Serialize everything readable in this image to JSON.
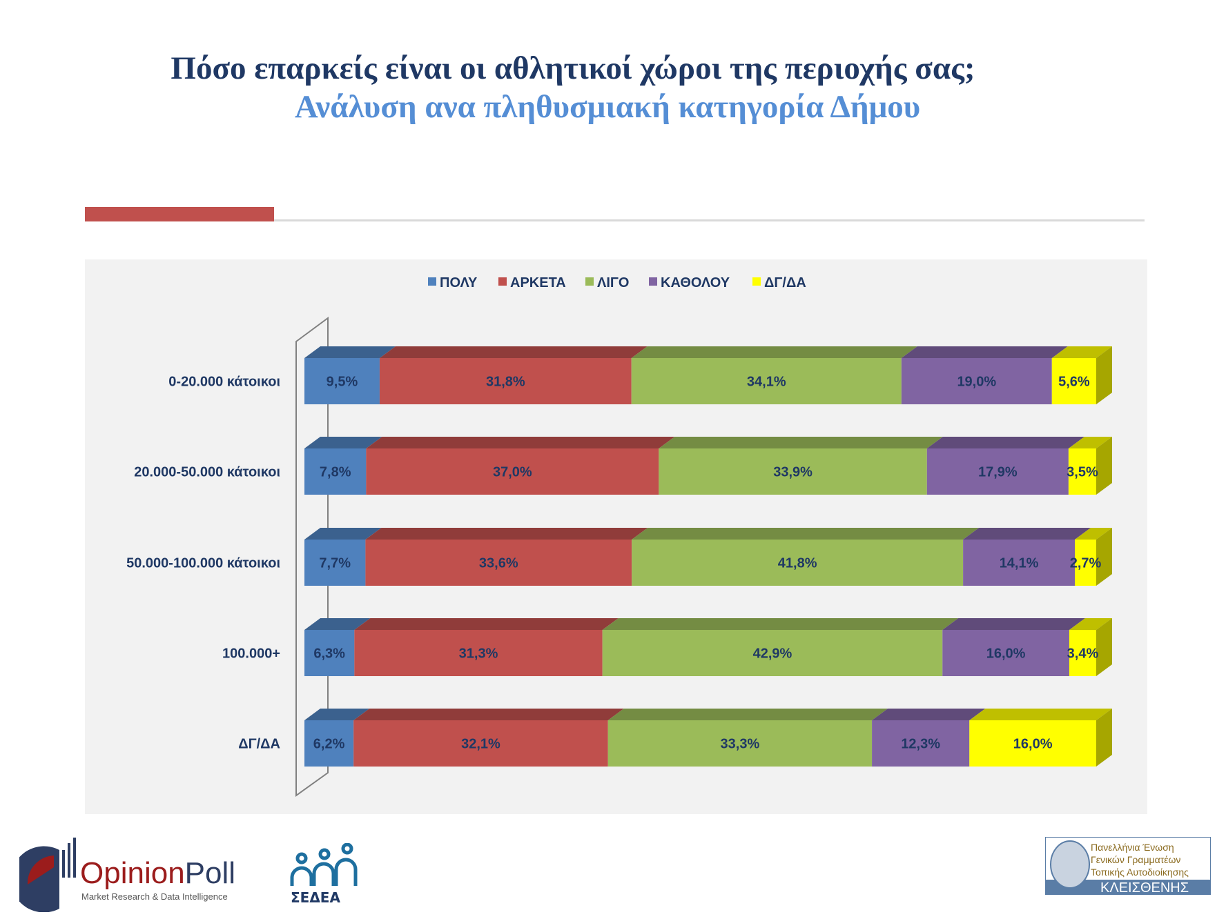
{
  "header": {
    "title": "Πόσο επαρκείς είναι οι αθλητικοί χώροι της περιοχής σας;",
    "subtitle": "Ανάλυση ανα πληθυσμιακή κατηγορία Δήμου"
  },
  "chart_data": {
    "type": "bar",
    "orientation": "horizontal",
    "stacked": "100%",
    "style": "3d",
    "title": "",
    "xlabel": "",
    "ylabel": "",
    "legend_position": "top",
    "grid": false,
    "categories": [
      "0-20.000 κάτοικοι",
      "20.000-50.000 κάτοικοι",
      "50.000-100.000 κάτοικοι",
      "100.000+",
      "ΔΓ/ΔΑ"
    ],
    "series": [
      {
        "name": "ΠΟΛΥ",
        "color": "#4F81BD",
        "values": [
          9.5,
          7.8,
          7.7,
          6.3,
          6.2
        ],
        "labels": [
          "9,5%",
          "7,8%",
          "7,7%",
          "6,3%",
          "6,2%"
        ]
      },
      {
        "name": "ΑΡΚΕΤΑ",
        "color": "#C0504D",
        "values": [
          31.8,
          37.0,
          33.6,
          31.3,
          32.1
        ],
        "labels": [
          "31,8%",
          "37,0%",
          "33,6%",
          "31,3%",
          "32,1%"
        ]
      },
      {
        "name": "ΛΙΓΟ",
        "color": "#9BBB59",
        "values": [
          34.1,
          33.9,
          41.8,
          42.9,
          33.3
        ],
        "labels": [
          "34,1%",
          "33,9%",
          "41,8%",
          "42,9%",
          "33,3%"
        ]
      },
      {
        "name": "ΚΑΘΟΛΟΥ",
        "color": "#8064A2",
        "values": [
          19.0,
          17.9,
          14.1,
          16.0,
          12.3
        ],
        "labels": [
          "19,0%",
          "17,9%",
          "14,1%",
          "16,0%",
          "12,3%"
        ]
      },
      {
        "name": "ΔΓ/ΔΑ",
        "color": "#FFFF00",
        "values": [
          5.6,
          3.5,
          2.7,
          3.4,
          16.0
        ],
        "labels": [
          "5,6%",
          "3,5%",
          "2,7%",
          "3,4%",
          "16,0%"
        ]
      }
    ]
  },
  "logos": {
    "opinionpoll": {
      "name": "OpinionPoll",
      "tagline": "Market Research & Data Intelligence"
    },
    "sedea": {
      "name": "ΣΕΔΕΑ"
    },
    "kleisthenis": {
      "line1": "Πανελλήνια Ένωση",
      "line2": "Γενικών Γραμματέων",
      "line3": "Τοπικής Αυτοδιοίκησης",
      "name": "ΚΛΕΙΣΘΕΝΗΣ"
    }
  }
}
